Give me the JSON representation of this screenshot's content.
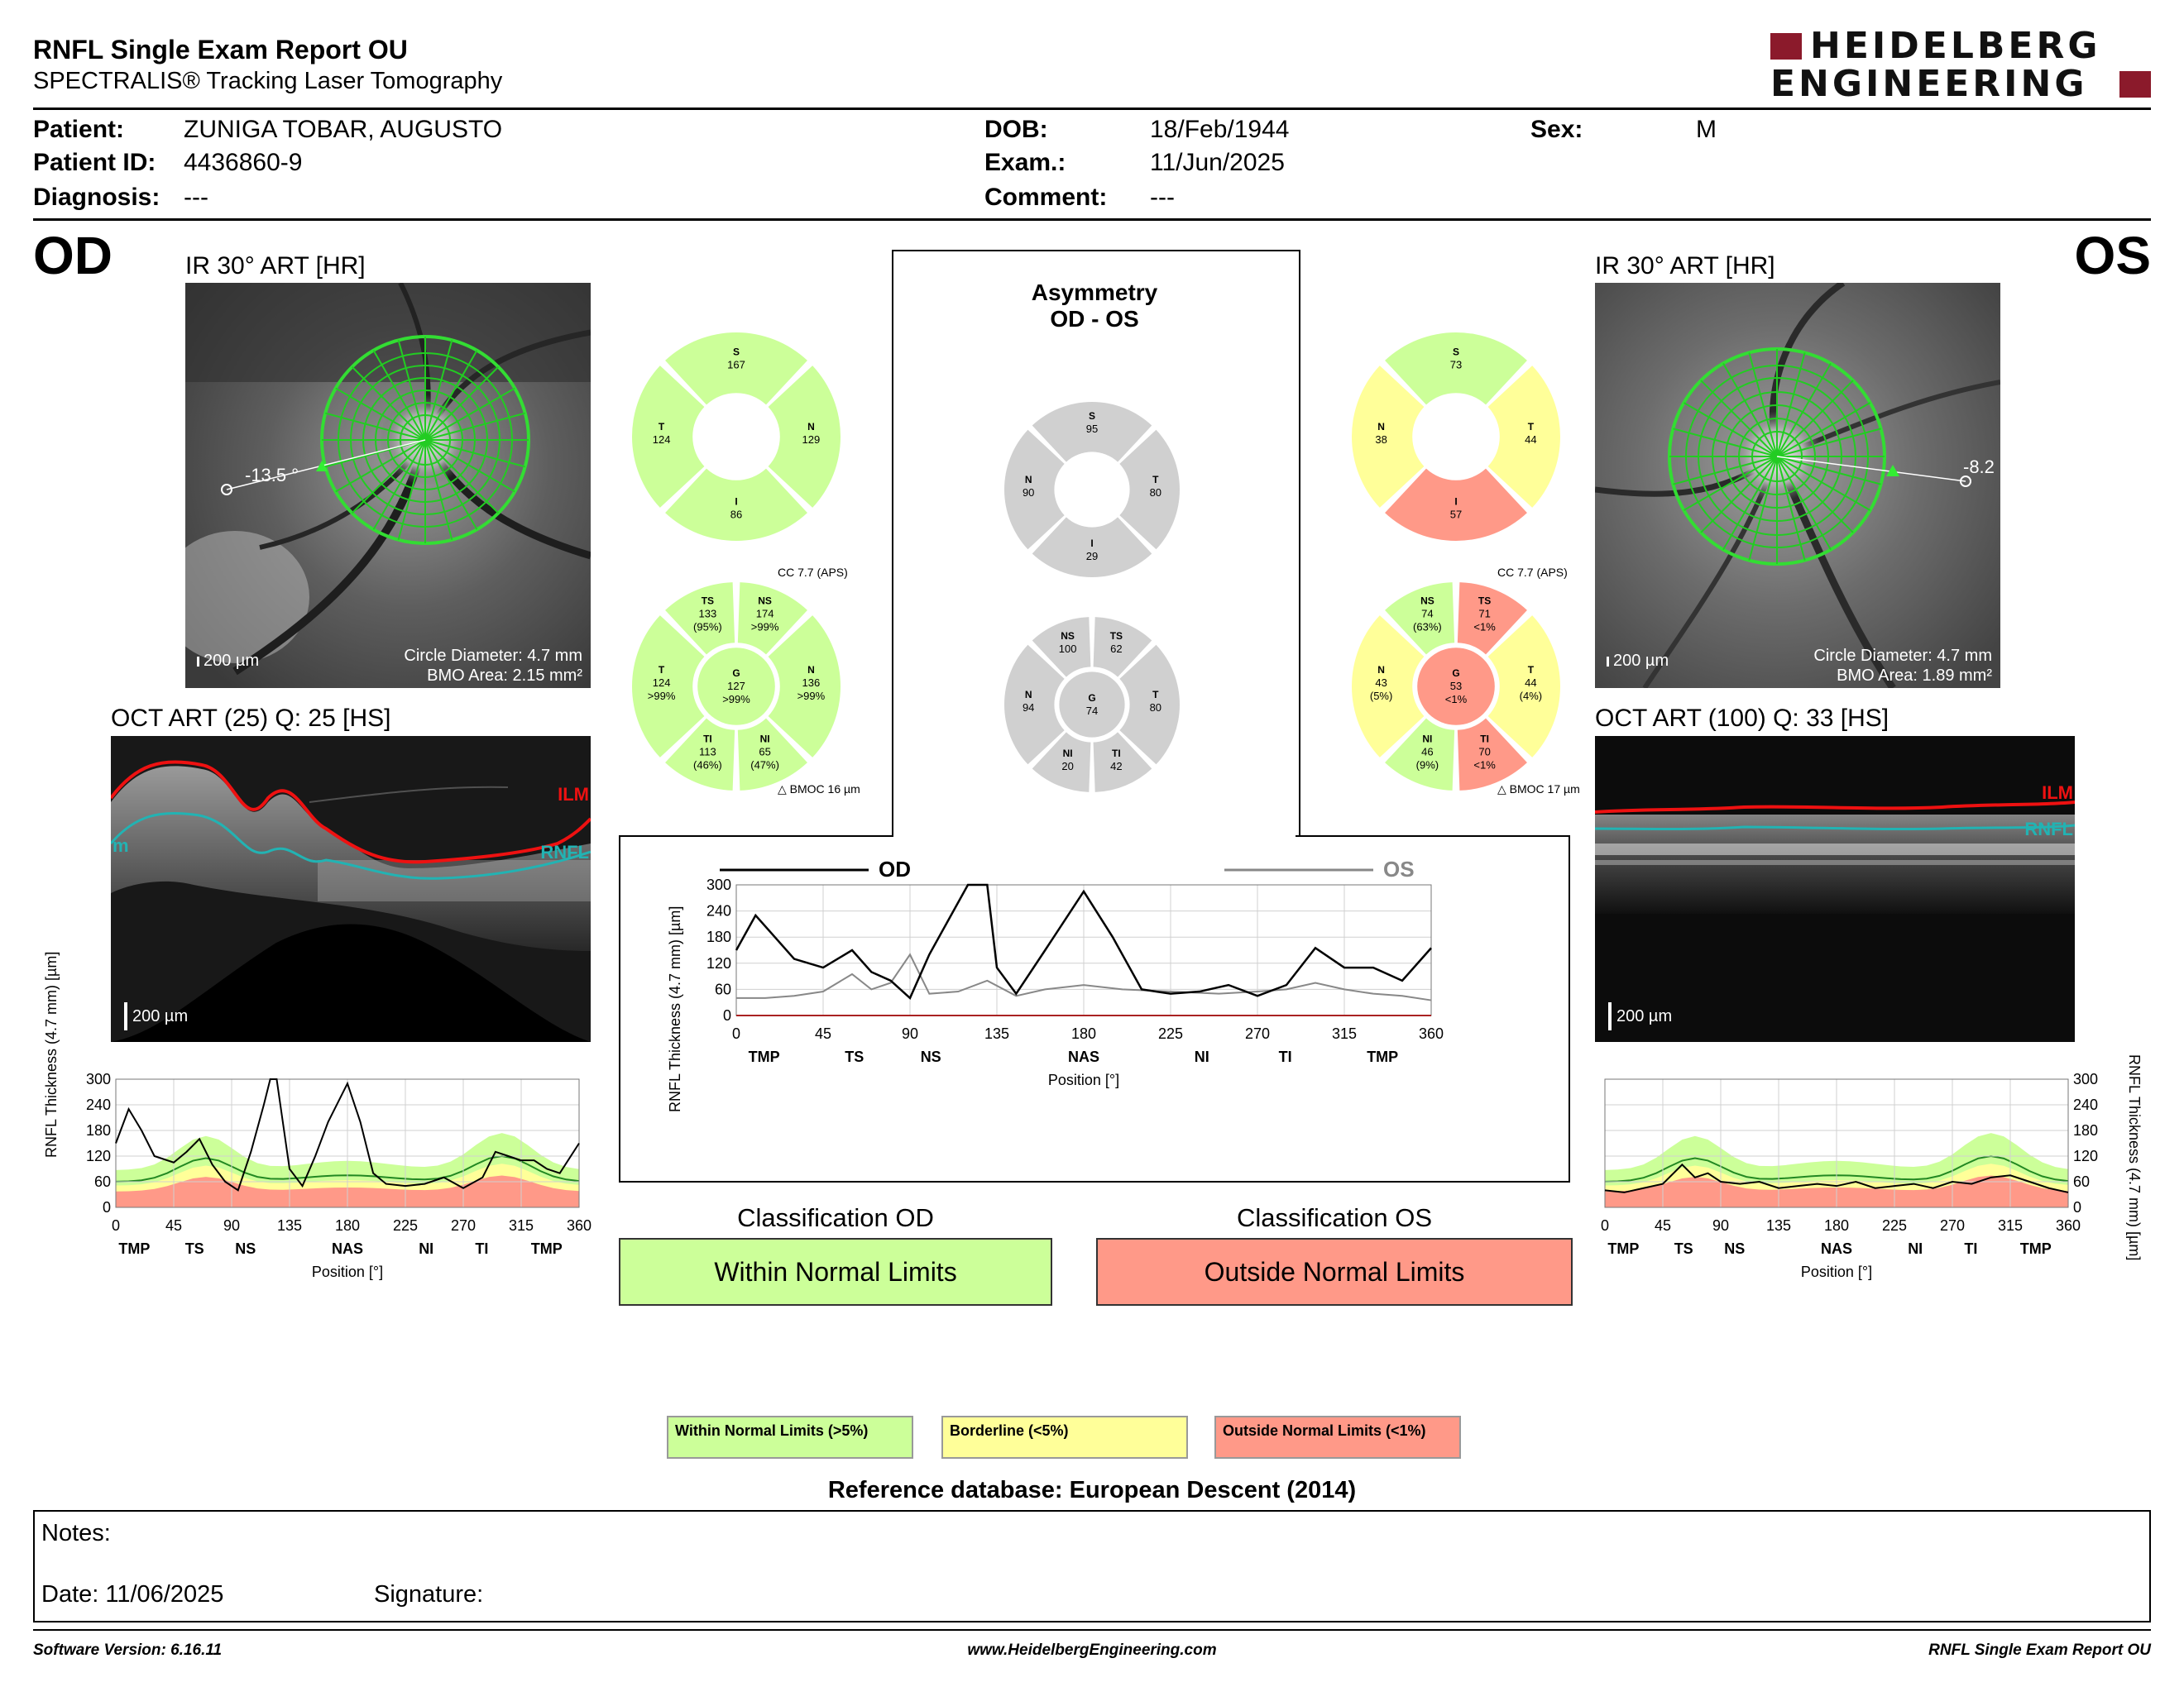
{
  "header": {
    "title": "RNFL Single Exam Report OU",
    "subtitle": "SPECTRALIS® Tracking Laser Tomography",
    "logo_line1": "HEIDELBERG",
    "logo_line2": "ENGINEERING"
  },
  "patient": {
    "patient_label": "Patient:",
    "patient_value": "ZUNIGA TOBAR, AUGUSTO",
    "id_label": "Patient ID:",
    "id_value": "4436860-9",
    "diag_label": "Diagnosis:",
    "diag_value": "---",
    "dob_label": "DOB:",
    "dob_value": "18/Feb/1944",
    "exam_label": "Exam.:",
    "exam_value": "11/Jun/2025",
    "comment_label": "Comment:",
    "comment_value": "---",
    "sex_label": "Sex:",
    "sex_value": "M"
  },
  "od": {
    "eye": "OD",
    "ir_title": "IR 30° ART [HR]",
    "angle": "-13.5 °",
    "scale": "200 µm",
    "circle_diameter": "Circle Diameter: 4.7 mm",
    "bmo_area": "BMO Area: 2.15 mm²",
    "oct_title": "OCT ART (25) Q: 25 [HS]",
    "oct_scale": "200 µm",
    "ilm": "ILM",
    "rnfl": "RNFL",
    "rnfl_left_fragment": "m",
    "sectors4": {
      "S": "167",
      "T": "124",
      "N": "129",
      "I": "86"
    },
    "cc": "CC 7.7 (APS)",
    "bmo_delta": "BMOC 16 µm",
    "sectors6": {
      "TS": [
        "TS",
        "133",
        "(95%)"
      ],
      "NS": [
        "NS",
        "174",
        ">99%"
      ],
      "T": [
        "T",
        "124",
        ">99%"
      ],
      "G": [
        "G",
        "127",
        ">99%"
      ],
      "N": [
        "N",
        "136",
        ">99%"
      ],
      "TI": [
        "TI",
        "113",
        "(46%)"
      ],
      "NI": [
        "NI",
        "65",
        "(47%)"
      ]
    }
  },
  "os": {
    "eye": "OS",
    "ir_title": "IR 30° ART [HR]",
    "angle": "-8.2",
    "scale": "200 µm",
    "circle_diameter": "Circle Diameter: 4.7 mm",
    "bmo_area": "BMO Area: 1.89 mm²",
    "oct_title": "OCT ART (100) Q: 33 [HS]",
    "oct_scale": "200 µm",
    "ilm": "ILM",
    "rnfl": "RNFL",
    "sectors4": {
      "S": "73",
      "N": "38",
      "T": "44",
      "I": "57"
    },
    "cc": "CC 7.7 (APS)",
    "bmo_delta": "BMOC 17 µm",
    "sectors6": {
      "NS": [
        "NS",
        "74",
        "(63%)"
      ],
      "TS": [
        "TS",
        "71",
        "<1%"
      ],
      "N": [
        "N",
        "43",
        "(5%)"
      ],
      "G": [
        "G",
        "53",
        "<1%"
      ],
      "T": [
        "T",
        "44",
        "(4%)"
      ],
      "NI": [
        "NI",
        "46",
        "(9%)"
      ],
      "TI": [
        "TI",
        "70",
        "<1%"
      ]
    }
  },
  "asymmetry": {
    "title1": "Asymmetry",
    "title2": "OD - OS",
    "sectors4": {
      "S": "95",
      "N": "90",
      "T": "80",
      "I": "29"
    },
    "sectors6": {
      "NS": "100",
      "TS": "62",
      "N": "94",
      "G": "74",
      "T": "80",
      "NI": "20",
      "TI": "42"
    },
    "legend_od": "OD",
    "legend_os": "OS"
  },
  "plots": {
    "ylabel": "RNFL Thickness (4.7 mm) [µm]",
    "xlabel": "Position [°]",
    "yticks": [
      "300",
      "240",
      "180",
      "120",
      "60",
      "0"
    ],
    "xticks": [
      "0",
      "45",
      "90",
      "135",
      "180",
      "225",
      "270",
      "315",
      "360"
    ],
    "sector_labels": [
      "TMP",
      "TS",
      "NS",
      "NAS",
      "NI",
      "TI",
      "TMP"
    ],
    "sector_labels_os": [
      "TMP",
      "TS",
      "NS",
      "NAS",
      "NI",
      "TI",
      "TMP"
    ]
  },
  "chart_data": [
    {
      "type": "line",
      "title": "",
      "xlabel": "Position [°]",
      "ylabel": "RNFL Thickness (4.7 mm) [µm]",
      "xlim": [
        0,
        360
      ],
      "ylim": [
        0,
        300
      ],
      "series": [
        {
          "name": "OD",
          "x": [
            0,
            10,
            20,
            30,
            45,
            60,
            70,
            80,
            90,
            100,
            110,
            120,
            130,
            135,
            145,
            160,
            180,
            195,
            210,
            225,
            240,
            255,
            270,
            285,
            300,
            315,
            330,
            345,
            360
          ],
          "values": [
            150,
            230,
            180,
            130,
            110,
            150,
            100,
            80,
            40,
            140,
            220,
            300,
            300,
            110,
            50,
            150,
            285,
            180,
            60,
            50,
            55,
            70,
            45,
            70,
            155,
            110,
            110,
            80,
            155
          ]
        },
        {
          "name": "OS",
          "x": [
            0,
            15,
            30,
            45,
            60,
            70,
            80,
            90,
            100,
            115,
            130,
            145,
            160,
            180,
            200,
            225,
            250,
            270,
            285,
            300,
            315,
            330,
            345,
            360
          ],
          "values": [
            40,
            40,
            45,
            55,
            95,
            60,
            75,
            140,
            50,
            55,
            80,
            45,
            60,
            70,
            60,
            55,
            50,
            55,
            60,
            75,
            60,
            50,
            45,
            35
          ]
        }
      ]
    },
    {
      "type": "area",
      "title": "",
      "xlabel": "Position [°]",
      "ylabel": "RNFL Thickness (4.7 mm) [µm]",
      "xlim": [
        0,
        360
      ],
      "ylim": [
        0,
        300
      ],
      "series": [
        {
          "name": "OD",
          "x": [
            0,
            10,
            20,
            30,
            45,
            55,
            65,
            75,
            85,
            95,
            105,
            115,
            120,
            125,
            135,
            145,
            155,
            165,
            180,
            190,
            200,
            210,
            225,
            240,
            255,
            270,
            285,
            295,
            305,
            315,
            325,
            335,
            345,
            360
          ],
          "values": [
            150,
            230,
            180,
            120,
            105,
            130,
            160,
            100,
            60,
            40,
            130,
            240,
            300,
            300,
            90,
            50,
            120,
            200,
            290,
            200,
            80,
            55,
            50,
            55,
            70,
            45,
            70,
            130,
            120,
            110,
            110,
            90,
            80,
            150
          ]
        }
      ]
    },
    {
      "type": "area",
      "title": "",
      "xlabel": "Position [°]",
      "ylabel": "RNFL Thickness (4.7 mm) [µm]",
      "xlim": [
        0,
        360
      ],
      "ylim": [
        0,
        300
      ],
      "series": [
        {
          "name": "OS",
          "x": [
            0,
            15,
            30,
            45,
            60,
            70,
            80,
            90,
            105,
            120,
            135,
            150,
            165,
            180,
            195,
            210,
            225,
            240,
            255,
            270,
            285,
            300,
            315,
            330,
            345,
            360
          ],
          "values": [
            40,
            35,
            45,
            55,
            100,
            70,
            80,
            60,
            55,
            60,
            45,
            50,
            55,
            50,
            60,
            45,
            50,
            55,
            45,
            60,
            55,
            70,
            75,
            60,
            45,
            35
          ]
        }
      ]
    }
  ],
  "classification": {
    "od_title": "Classification OD",
    "od_value": "Within Normal Limits",
    "os_title": "Classification OS",
    "os_value": "Outside Normal Limits"
  },
  "legend": {
    "wnl": "Within Normal Limits (>5%)",
    "bl": "Borderline (<5%)",
    "onl": "Outside Normal Limits (<1%)",
    "refdb": "Reference database: European Descent (2014)"
  },
  "notes": {
    "notes_label": "Notes:",
    "date_label": "Date: 11/06/2025",
    "sig_label": "Signature:"
  },
  "footer": {
    "software": "Software Version: 6.16.11",
    "url": "www.HeidelbergEngineering.com",
    "report": "RNFL Single Exam Report OU"
  },
  "colors": {
    "green": "#ccff99",
    "yellow": "#ffff99",
    "red": "#ff9988",
    "gray": "#d0d0d0",
    "brand": "#8b1a2b",
    "od_line": "#000000",
    "os_line": "#888888"
  }
}
